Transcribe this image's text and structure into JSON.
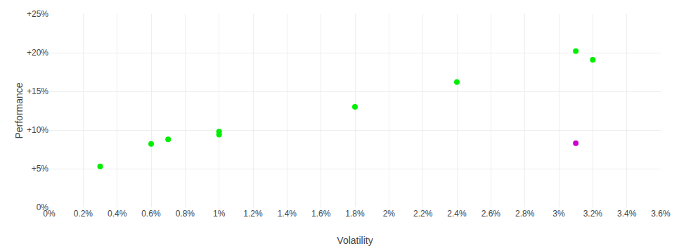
{
  "chart_data": {
    "type": "scatter",
    "xlabel": "Volatility",
    "ylabel": "Performance",
    "x": [
      0.003,
      0.006,
      0.007,
      0.01,
      0.01,
      0.018,
      0.024,
      0.031,
      0.031,
      0.032
    ],
    "values": [
      0.053,
      0.082,
      0.088,
      0.098,
      0.094,
      0.13,
      0.162,
      0.083,
      0.202,
      0.191
    ],
    "colors": [
      "#00ee00",
      "#00ee00",
      "#00ee00",
      "#00ee00",
      "#00ee00",
      "#00ee00",
      "#00ee00",
      "#cc00cc",
      "#00ee00",
      "#00ee00"
    ],
    "xlim": [
      0,
      0.036
    ],
    "ylim": [
      0,
      0.25
    ],
    "xticks": [
      {
        "value": 0,
        "label": "0%"
      },
      {
        "value": 0.002,
        "label": "0.2%"
      },
      {
        "value": 0.004,
        "label": "0.4%"
      },
      {
        "value": 0.006,
        "label": "0.6%"
      },
      {
        "value": 0.008,
        "label": "0.8%"
      },
      {
        "value": 0.01,
        "label": "1%"
      },
      {
        "value": 0.012,
        "label": "1.2%"
      },
      {
        "value": 0.014,
        "label": "1.4%"
      },
      {
        "value": 0.016,
        "label": "1.6%"
      },
      {
        "value": 0.018,
        "label": "1.8%"
      },
      {
        "value": 0.02,
        "label": "2%"
      },
      {
        "value": 0.022,
        "label": "2.2%"
      },
      {
        "value": 0.024,
        "label": "2.4%"
      },
      {
        "value": 0.026,
        "label": "2.6%"
      },
      {
        "value": 0.028,
        "label": "2.8%"
      },
      {
        "value": 0.03,
        "label": "3%"
      },
      {
        "value": 0.032,
        "label": "3.2%"
      },
      {
        "value": 0.034,
        "label": "3.4%"
      },
      {
        "value": 0.036,
        "label": "3.6%"
      }
    ],
    "yticks": [
      {
        "value": 0,
        "label": "0%"
      },
      {
        "value": 0.05,
        "label": "+5%"
      },
      {
        "value": 0.1,
        "label": "+10%"
      },
      {
        "value": 0.15,
        "label": "+15%"
      },
      {
        "value": 0.2,
        "label": "+20%"
      },
      {
        "value": 0.25,
        "label": "+25%"
      }
    ],
    "grid": true
  }
}
